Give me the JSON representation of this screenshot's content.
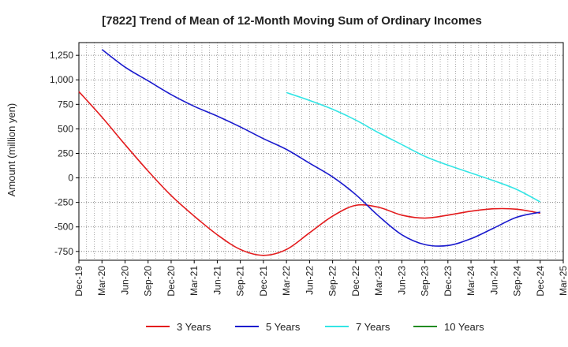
{
  "chart_data": {
    "type": "line",
    "title": "[7822]  Trend of Mean of 12-Month Moving Sum of Ordinary Incomes",
    "xlabel": "",
    "ylabel": "Amount (million yen)",
    "ylim": [
      -840,
      1380
    ],
    "yticks": [
      -750,
      -500,
      -250,
      0,
      250,
      500,
      750,
      1000,
      1250
    ],
    "ytick_labels": [
      "-750",
      "-500",
      "-250",
      "0",
      "250",
      "500",
      "750",
      "1,000",
      "1,250"
    ],
    "xticks": [
      "Dec-19",
      "Mar-20",
      "Jun-20",
      "Sep-20",
      "Dec-20",
      "Mar-21",
      "Jun-21",
      "Sep-21",
      "Dec-21",
      "Mar-22",
      "Jun-22",
      "Sep-22",
      "Dec-22",
      "Mar-23",
      "Jun-23",
      "Sep-23",
      "Dec-23",
      "Mar-24",
      "Jun-24",
      "Sep-24",
      "Dec-24",
      "Mar-25"
    ],
    "grid": true,
    "legend_position": "bottom",
    "series": [
      {
        "name": "3 Years",
        "color": "#e31a1c",
        "points": [
          [
            0,
            880
          ],
          [
            1,
            620
          ],
          [
            2,
            340
          ],
          [
            3,
            70
          ],
          [
            4,
            -180
          ],
          [
            5,
            -390
          ],
          [
            6,
            -580
          ],
          [
            7,
            -730
          ],
          [
            8,
            -790
          ],
          [
            9,
            -730
          ],
          [
            10,
            -560
          ],
          [
            11,
            -390
          ],
          [
            12,
            -280
          ],
          [
            13,
            -300
          ],
          [
            14,
            -380
          ],
          [
            15,
            -410
          ],
          [
            16,
            -380
          ],
          [
            17,
            -340
          ],
          [
            18,
            -315
          ],
          [
            19,
            -320
          ],
          [
            20,
            -360
          ]
        ]
      },
      {
        "name": "5 Years",
        "color": "#1a1acd",
        "points": [
          [
            1,
            1310
          ],
          [
            2,
            1130
          ],
          [
            3,
            990
          ],
          [
            4,
            850
          ],
          [
            5,
            730
          ],
          [
            6,
            630
          ],
          [
            7,
            520
          ],
          [
            8,
            400
          ],
          [
            9,
            290
          ],
          [
            10,
            150
          ],
          [
            11,
            10
          ],
          [
            12,
            -170
          ],
          [
            13,
            -390
          ],
          [
            14,
            -580
          ],
          [
            15,
            -680
          ],
          [
            16,
            -690
          ],
          [
            17,
            -620
          ],
          [
            18,
            -510
          ],
          [
            19,
            -400
          ],
          [
            20,
            -350
          ]
        ]
      },
      {
        "name": "7 Years",
        "color": "#33e5e5",
        "points": [
          [
            9,
            870
          ],
          [
            10,
            790
          ],
          [
            11,
            700
          ],
          [
            12,
            590
          ],
          [
            13,
            460
          ],
          [
            14,
            340
          ],
          [
            15,
            220
          ],
          [
            16,
            130
          ],
          [
            17,
            50
          ],
          [
            18,
            -30
          ],
          [
            19,
            -120
          ],
          [
            20,
            -245
          ]
        ]
      },
      {
        "name": "10 Years",
        "color": "#228b22",
        "points": []
      }
    ]
  }
}
